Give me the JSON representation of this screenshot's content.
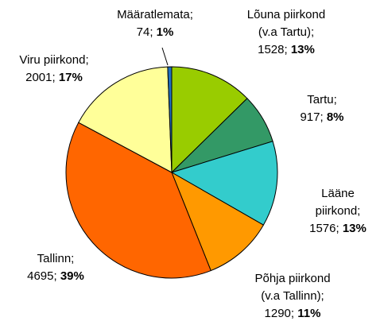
{
  "chart_data": {
    "type": "pie",
    "categories": [
      "Lõuna piirkond\n(v.a Tartu);",
      "Tartu;",
      "Lääne piirkond;",
      "Põhja piirkond\n(v.a Tallinn);",
      "Tallinn;",
      "Viru piirkond;",
      "Määratlemata;"
    ],
    "values": [
      1528,
      917,
      1576,
      1290,
      4695,
      2001,
      74
    ],
    "value_labels": [
      "1528;",
      "917;",
      "1576;",
      "1290;",
      "4695;",
      "2001;",
      "74;"
    ],
    "percent_labels": [
      "13%",
      "8%",
      "13%",
      "11%",
      "39%",
      "17%",
      "1%"
    ],
    "colors": [
      "#99cc00",
      "#339966",
      "#33cccc",
      "#ff9900",
      "#ff6600",
      "#ffff99",
      "#1f6fc0"
    ]
  }
}
